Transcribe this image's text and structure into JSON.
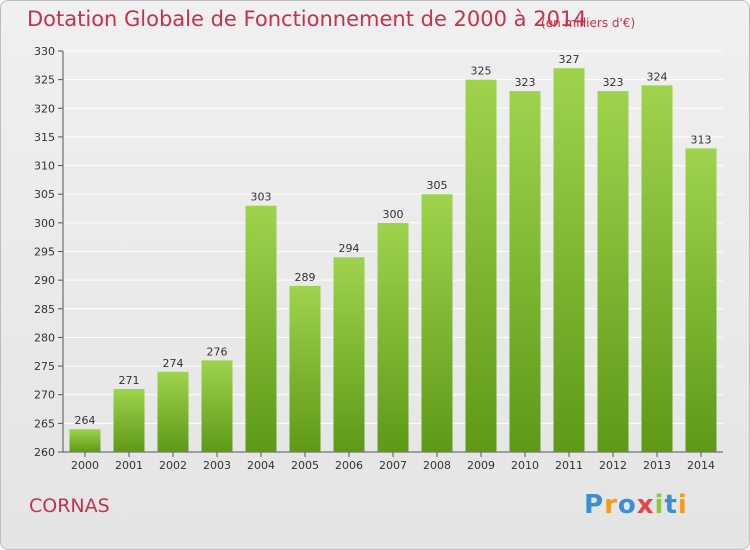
{
  "header": {
    "title": "Dotation Globale de Fonctionnement de 2000 à 2014",
    "subtitle": "(en milliers d'€)"
  },
  "footer": {
    "commune": "CORNAS"
  },
  "logo": {
    "letters": [
      "P",
      "r",
      "o",
      "x",
      "i",
      "t",
      "i"
    ],
    "colors": [
      "#3a8fd6",
      "#f29c1f",
      "#3a8fd6",
      "#e8434a",
      "#8dc63f",
      "#3a8fd6",
      "#f29c1f"
    ]
  },
  "colors": {
    "bar_top": "#9fd34e",
    "bar_bottom": "#5e9a16",
    "title": "#c8314a",
    "grid": "#ffffff"
  },
  "chart_data": {
    "type": "bar",
    "title": "Dotation Globale de Fonctionnement de 2000 à 2014",
    "subtitle": "(en milliers d'€)",
    "categories": [
      "2000",
      "2001",
      "2002",
      "2003",
      "2004",
      "2005",
      "2006",
      "2007",
      "2008",
      "2009",
      "2010",
      "2011",
      "2012",
      "2013",
      "2014"
    ],
    "values": [
      264,
      271,
      274,
      276,
      303,
      289,
      294,
      300,
      305,
      325,
      323,
      327,
      323,
      324,
      313
    ],
    "ylim": [
      260,
      330
    ],
    "yticks": [
      260,
      265,
      270,
      275,
      280,
      285,
      290,
      295,
      300,
      305,
      310,
      315,
      320,
      325,
      330
    ],
    "grid": true,
    "data_labels": true
  }
}
